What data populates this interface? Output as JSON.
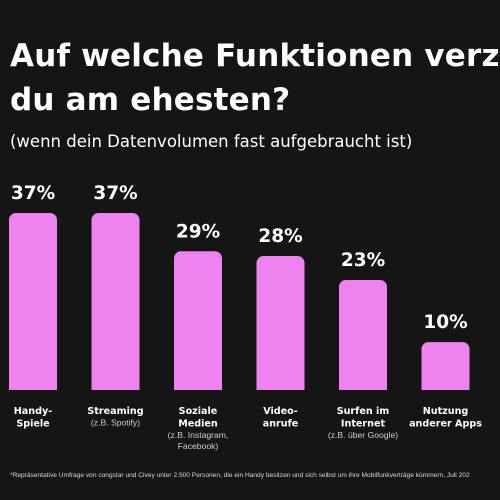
{
  "header": {
    "title_line1": "Auf welche Funktionen verz",
    "title_line2": "du am ehesten?",
    "subtitle": "(wenn dein Datenvolumen fast aufgebraucht ist)"
  },
  "colors": {
    "background": "#151515",
    "bar": "#ee82ee",
    "text": "#ffffff",
    "sublabel": "#cfcfcf"
  },
  "chart_data": {
    "type": "bar",
    "categories": [
      {
        "label": [
          "Handy-",
          "Spiele"
        ],
        "sublabel": []
      },
      {
        "label": [
          "Streaming"
        ],
        "sublabel": [
          "(z.B. Spotify)"
        ]
      },
      {
        "label": [
          "Soziale",
          "Medien"
        ],
        "sublabel": [
          "(z.B. Instagram,",
          "Facebook)"
        ]
      },
      {
        "label": [
          "Video-",
          "anrufe"
        ],
        "sublabel": []
      },
      {
        "label": [
          "Surfen im",
          "Internet"
        ],
        "sublabel": [
          "(z.B. über Google)"
        ]
      },
      {
        "label": [
          "Nutzung",
          "anderer Apps"
        ],
        "sublabel": []
      }
    ],
    "values": [
      37,
      37,
      29,
      28,
      23,
      10
    ],
    "value_labels": [
      "37%",
      "37%",
      "29%",
      "28%",
      "23%",
      "10%"
    ],
    "unit": "%",
    "ylim": [
      0,
      37
    ],
    "grid": false,
    "legend": false
  },
  "footnote": "*Repräsentative Umfrage von congstar und Civey unter 2.500 Personen, die ein Handy besitzen und sich selbst um ihre Mobilfunkverträge kümmern, Juli 202"
}
